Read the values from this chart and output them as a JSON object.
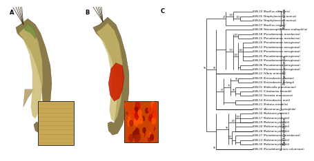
{
  "panel_labels": [
    "A",
    "B",
    "C"
  ],
  "taxa": [
    "SSN-10 (Bacillus altitudinis)",
    "SSN-05 (Staphylococcus aureus)",
    "SSN-6a (Staphylococcus aureus)",
    "SSN-07 (Bacillus cereus)",
    "SSN-08 (Stenotrophomonas maltophilia)",
    "SSN-18 (Pseudomonas mendocina)",
    "SSN-15 (Pseudomonas mendocina)",
    "SSN-26 (Pseudomonas aeruginosa)",
    "SSN-12 (Pseudomonas aeruginosa)",
    "SSN-24 (Pseudomonas aeruginosa)",
    "SSN-25 (Pseudomonas aeruginosa)",
    "SSN-19 (Pseudomonas aeruginosa)",
    "SSN-06 (Pseudomonas aeruginosa)",
    "SSN-11 (Pseudomonas aeruginosa)",
    "SSN-22 (Vibrio mimicus)",
    "SSN-09 (Enterobacter cloacae)",
    "SSN-03 (Enterobacter ludwigii)",
    "SSN-01 (Klebsiella pneumoniae)",
    "SSN-31 (Citrobacter freundii)",
    "SSN-02 (Serratia marcescens)",
    "SSN-14 (Enterobacter mori)",
    "SSN-21 (Proteus mirabilis)",
    "SSN-32 (Aeromonas hydrophila)",
    "SSN-16 (Ralstonia pickettii)",
    "SSN-17 (Ralstonia pickettii)",
    "SSN-29 (Ralstonia pickettii)",
    "SSN-20 (Ralstonia pickettii)",
    "SSN-28 (Ralstonia pickettii)",
    "SSN-27 (Pseudomonas mendocina)",
    "SSN-13 (Ralstonia pickettii)",
    "SSN-30 (Ralstonia pickettii)",
    "SSN-30 (Pseudobacterium columnare)"
  ],
  "bg_color": "#ffffff",
  "text_color": "#000000",
  "line_color": "#000000",
  "font_size_taxa": 2.8,
  "font_size_labels": 6.0,
  "font_size_bootstrap": 2.4,
  "font_size_group": 4.2
}
